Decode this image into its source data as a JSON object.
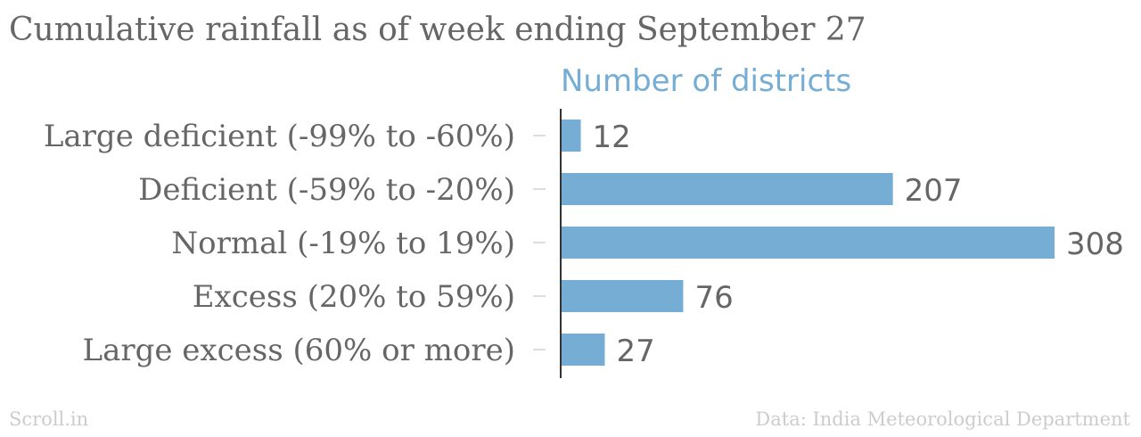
{
  "title": "Cumulative rainfall as of week ending September 27",
  "footer": {
    "source_left": "Scroll.in",
    "source_right": "Data: India Meteorological Department"
  },
  "chart_data": {
    "type": "bar",
    "orientation": "horizontal",
    "title": "Cumulative rainfall as of week ending September 27",
    "xlabel": "Number of districts",
    "ylabel": "",
    "categories": [
      "Large deficient (-99% to -60%)",
      "Deficient (-59% to -20%)",
      "Normal (-19% to 19%)",
      "Excess (20% to 59%)",
      "Large excess (60% or more)"
    ],
    "values": [
      12,
      207,
      308,
      76,
      27
    ],
    "xlim": [
      0,
      308
    ],
    "grid": false,
    "bar_color": "#76add4",
    "axis_title_color": "#76add4",
    "text_color": "#666666"
  }
}
